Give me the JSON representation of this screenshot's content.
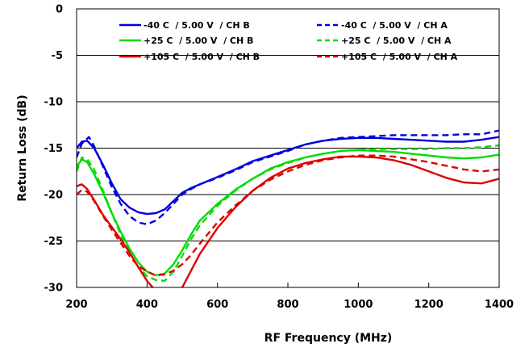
{
  "chart_data": {
    "type": "line",
    "xlabel": "RF  Frequency (MHz)",
    "ylabel": "Return Loss (dB)",
    "xlim": [
      200,
      1400
    ],
    "ylim": [
      -30,
      0
    ],
    "xticks": [
      200,
      400,
      600,
      800,
      1000,
      1200,
      1400
    ],
    "yticks": [
      0,
      -5,
      -10,
      -15,
      -20,
      -25,
      -30
    ],
    "grid": "horizontal",
    "legend_position": "top",
    "series": [
      {
        "name": "-40 C  / 5.00 V  / CH B",
        "color": "#0000dd",
        "dash": "solid",
        "x": [
          200,
          215,
          230,
          250,
          275,
          300,
          325,
          350,
          375,
          400,
          425,
          450,
          475,
          500,
          525,
          550,
          600,
          650,
          700,
          750,
          800,
          850,
          900,
          950,
          1000,
          1050,
          1100,
          1150,
          1200,
          1250,
          1300,
          1350,
          1400
        ],
        "y": [
          -15.0,
          -14.3,
          -14.2,
          -15.0,
          -16.8,
          -18.8,
          -20.5,
          -21.4,
          -21.9,
          -22.1,
          -22.0,
          -21.6,
          -20.7,
          -19.8,
          -19.3,
          -18.9,
          -18.1,
          -17.3,
          -16.4,
          -15.8,
          -15.2,
          -14.6,
          -14.2,
          -14.0,
          -13.9,
          -13.9,
          -14.0,
          -14.1,
          -14.2,
          -14.3,
          -14.3,
          -14.1,
          -13.8
        ]
      },
      {
        "name": "-40 C  / 5.00 V  / CH A",
        "color": "#0000dd",
        "dash": "dashed",
        "x": [
          200,
          215,
          235,
          250,
          275,
          300,
          325,
          350,
          375,
          400,
          425,
          450,
          475,
          500,
          525,
          550,
          600,
          650,
          700,
          750,
          800,
          850,
          900,
          950,
          1000,
          1050,
          1100,
          1150,
          1200,
          1250,
          1300,
          1350,
          1400
        ],
        "y": [
          -16.0,
          -14.5,
          -13.8,
          -14.8,
          -17.0,
          -19.2,
          -21.0,
          -22.3,
          -23.0,
          -23.2,
          -22.8,
          -22.0,
          -21.0,
          -20.0,
          -19.4,
          -18.9,
          -18.2,
          -17.4,
          -16.5,
          -15.9,
          -15.3,
          -14.6,
          -14.2,
          -13.9,
          -13.8,
          -13.7,
          -13.6,
          -13.6,
          -13.6,
          -13.6,
          -13.5,
          -13.5,
          -13.1
        ]
      },
      {
        "name": "+25 C  / 5.00 V  / CH B",
        "color": "#00dd00",
        "dash": "solid",
        "x": [
          200,
          215,
          230,
          250,
          275,
          300,
          325,
          350,
          375,
          400,
          425,
          450,
          475,
          500,
          525,
          550,
          600,
          650,
          700,
          750,
          800,
          850,
          900,
          950,
          1000,
          1050,
          1100,
          1150,
          1200,
          1250,
          1300,
          1350,
          1400
        ],
        "y": [
          -17.0,
          -16.2,
          -16.5,
          -17.8,
          -19.8,
          -22.0,
          -24.0,
          -25.8,
          -27.3,
          -28.3,
          -28.7,
          -28.5,
          -27.5,
          -26.0,
          -24.3,
          -22.8,
          -21.0,
          -19.5,
          -18.3,
          -17.2,
          -16.5,
          -16.0,
          -15.6,
          -15.3,
          -15.2,
          -15.3,
          -15.4,
          -15.6,
          -15.8,
          -16.0,
          -16.1,
          -16.0,
          -15.7
        ]
      },
      {
        "name": "+25 C  / 5.00 V  / CH A",
        "color": "#00dd00",
        "dash": "dashed",
        "x": [
          200,
          215,
          230,
          250,
          275,
          300,
          325,
          350,
          375,
          400,
          425,
          450,
          475,
          500,
          525,
          550,
          600,
          650,
          700,
          750,
          800,
          850,
          900,
          950,
          1000,
          1050,
          1100,
          1150,
          1200,
          1250,
          1300,
          1350,
          1400
        ],
        "y": [
          -17.5,
          -16.0,
          -16.2,
          -17.3,
          -19.6,
          -22.0,
          -24.3,
          -26.2,
          -27.8,
          -28.8,
          -29.2,
          -29.3,
          -28.3,
          -26.6,
          -24.8,
          -23.3,
          -21.2,
          -19.6,
          -18.3,
          -17.3,
          -16.6,
          -16.0,
          -15.6,
          -15.3,
          -15.2,
          -15.1,
          -15.1,
          -15.1,
          -15.1,
          -15.0,
          -15.0,
          -14.9,
          -14.7
        ]
      },
      {
        "name": "+105 C  / 5.00 V  / CH B",
        "color": "#dd0000",
        "dash": "solid",
        "x": [
          200,
          215,
          230,
          250,
          275,
          300,
          325,
          350,
          375,
          400,
          425,
          450,
          475,
          500,
          525,
          550,
          600,
          650,
          700,
          750,
          800,
          850,
          900,
          950,
          1000,
          1050,
          1100,
          1150,
          1200,
          1250,
          1300,
          1350,
          1400
        ],
        "y": [
          -19.1,
          -18.9,
          -19.4,
          -20.6,
          -22.2,
          -23.5,
          -24.8,
          -26.2,
          -27.8,
          -29.3,
          -30.4,
          -31.0,
          -31.0,
          -30.0,
          -28.2,
          -26.4,
          -23.6,
          -21.4,
          -19.6,
          -18.2,
          -17.2,
          -16.6,
          -16.2,
          -15.9,
          -15.9,
          -16.0,
          -16.3,
          -16.8,
          -17.5,
          -18.2,
          -18.7,
          -18.8,
          -18.3
        ]
      },
      {
        "name": "+105 C  / 5.00 V  / CH A",
        "color": "#dd0000",
        "dash": "dashed",
        "x": [
          200,
          215,
          230,
          250,
          275,
          300,
          325,
          350,
          375,
          400,
          425,
          450,
          475,
          500,
          525,
          550,
          600,
          650,
          700,
          750,
          800,
          850,
          900,
          950,
          1000,
          1050,
          1100,
          1150,
          1200,
          1250,
          1300,
          1350,
          1400
        ],
        "y": [
          -20.0,
          -19.5,
          -19.7,
          -20.7,
          -22.3,
          -23.8,
          -25.2,
          -26.6,
          -27.7,
          -28.3,
          -28.7,
          -28.6,
          -28.2,
          -27.5,
          -26.5,
          -25.3,
          -23.0,
          -21.2,
          -19.6,
          -18.4,
          -17.5,
          -16.8,
          -16.3,
          -16.0,
          -15.8,
          -15.8,
          -15.9,
          -16.2,
          -16.5,
          -16.9,
          -17.3,
          -17.5,
          -17.3
        ]
      }
    ]
  }
}
